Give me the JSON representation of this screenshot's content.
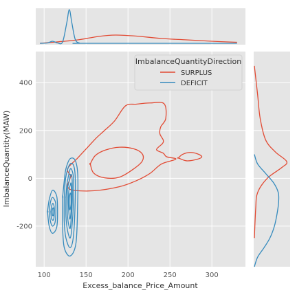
{
  "chart_data": {
    "type": "joint-kde",
    "xlabel": "Excess_balance_Price_Amount",
    "ylabel": "ImbalanceQuantity(MAW)",
    "xlim": [
      90,
      340
    ],
    "ylim": [
      -370,
      530
    ],
    "xticks": [
      100,
      150,
      200,
      250,
      300
    ],
    "yticks": [
      -200,
      0,
      200,
      400
    ],
    "grid": true,
    "legend": {
      "title": "ImbalanceQuantityDirection",
      "placement": "top-right"
    },
    "series": [
      {
        "name": "SURPLUS",
        "color": "#e24a33",
        "joint_contours": [
          [
            [
              132,
              10
            ],
            [
              128,
              40
            ],
            [
              140,
              85
            ],
            [
              152,
              130
            ],
            [
              162,
              168
            ],
            [
              172,
              200
            ],
            [
              184,
              240
            ],
            [
              197,
              303
            ],
            [
              210,
              310
            ],
            [
              226,
              315
            ],
            [
              243,
              312
            ],
            [
              245,
              250
            ],
            [
              239,
              215
            ],
            [
              238,
              186
            ],
            [
              242,
              160
            ],
            [
              241,
              145
            ],
            [
              234,
              120
            ],
            [
              242,
              105
            ],
            [
              246,
              90
            ],
            [
              257,
              80
            ],
            [
              240,
              60
            ],
            [
              226,
              20
            ],
            [
              210,
              -10
            ],
            [
              190,
              -35
            ],
            [
              160,
              -52
            ],
            [
              135,
              -50
            ],
            [
              128,
              -35
            ],
            [
              130,
              -10
            ],
            [
              132,
              10
            ]
          ],
          [
            [
              155,
              60
            ],
            [
              161,
              95
            ],
            [
              173,
              118
            ],
            [
              190,
              130
            ],
            [
              207,
              123
            ],
            [
              217,
              102
            ],
            [
              217,
              72
            ],
            [
              207,
              40
            ],
            [
              190,
              5
            ],
            [
              172,
              2
            ],
            [
              159,
              22
            ],
            [
              155,
              60
            ]
          ],
          [
            [
              260,
              85
            ],
            [
              265,
              100
            ],
            [
              274,
              108
            ],
            [
              283,
              102
            ],
            [
              288,
              90
            ],
            [
              283,
              80
            ],
            [
              270,
              73
            ],
            [
              260,
              85
            ]
          ]
        ],
        "x_density": [
          [
            95,
            0
          ],
          [
            115,
            0.004
          ],
          [
            140,
            0.01
          ],
          [
            165,
            0.02
          ],
          [
            185,
            0.024
          ],
          [
            210,
            0.021
          ],
          [
            240,
            0.014
          ],
          [
            270,
            0.01
          ],
          [
            300,
            0.006
          ],
          [
            330,
            0.003
          ]
        ],
        "y_density": [
          [
            -250,
            0
          ],
          [
            -130,
            0.004
          ],
          [
            -60,
            0.01
          ],
          [
            0,
            0.04
          ],
          [
            45,
            0.085
          ],
          [
            70,
            0.1
          ],
          [
            110,
            0.065
          ],
          [
            160,
            0.035
          ],
          [
            250,
            0.018
          ],
          [
            350,
            0.01
          ],
          [
            470,
            0
          ]
        ]
      },
      {
        "name": "DEFICIT",
        "color": "#348abd",
        "joint_contours": [
          [
            [
              122,
              -80
            ],
            [
              124,
              -10
            ],
            [
              126,
              40
            ],
            [
              131,
              82
            ],
            [
              137,
              75
            ],
            [
              140,
              20
            ],
            [
              140,
              -100
            ],
            [
              138,
              -270
            ],
            [
              131,
              -325
            ],
            [
              124,
              -290
            ],
            [
              122,
              -200
            ],
            [
              122,
              -80
            ]
          ],
          [
            [
              124,
              -80
            ],
            [
              125,
              -20
            ],
            [
              127,
              25
            ],
            [
              131,
              60
            ],
            [
              135,
              55
            ],
            [
              137,
              10
            ],
            [
              137,
              -100
            ],
            [
              135,
              -240
            ],
            [
              131,
              -290
            ],
            [
              126,
              -250
            ],
            [
              124,
              -180
            ],
            [
              124,
              -80
            ]
          ],
          [
            [
              126,
              -80
            ],
            [
              127,
              -30
            ],
            [
              129,
              10
            ],
            [
              131,
              38
            ],
            [
              133,
              35
            ],
            [
              135,
              0
            ],
            [
              135,
              -100
            ],
            [
              133,
              -210
            ],
            [
              131,
              -250
            ],
            [
              128,
              -220
            ],
            [
              126,
              -160
            ],
            [
              126,
              -80
            ]
          ],
          [
            [
              127.5,
              -80
            ],
            [
              128,
              -40
            ],
            [
              130,
              -10
            ],
            [
              131.5,
              15
            ],
            [
              133,
              10
            ],
            [
              133.5,
              -20
            ],
            [
              133.5,
              -100
            ],
            [
              132,
              -180
            ],
            [
              131,
              -210
            ],
            [
              129,
              -190
            ],
            [
              127.5,
              -140
            ],
            [
              127.5,
              -80
            ]
          ],
          [
            [
              129,
              -80
            ],
            [
              129.5,
              -50
            ],
            [
              131,
              -30
            ],
            [
              132,
              -20
            ],
            [
              132.5,
              -50
            ],
            [
              132.5,
              -110
            ],
            [
              131.5,
              -160
            ],
            [
              130.5,
              -170
            ],
            [
              129.5,
              -145
            ],
            [
              129,
              -110
            ],
            [
              129,
              -80
            ]
          ],
          [
            [
              130,
              -90
            ],
            [
              130.5,
              -70
            ],
            [
              131.5,
              -62
            ],
            [
              132,
              -80
            ],
            [
              132,
              -110
            ],
            [
              131,
              -130
            ],
            [
              130.5,
              -130
            ],
            [
              130,
              -110
            ],
            [
              130,
              -90
            ]
          ],
          [
            [
              104,
              -140
            ],
            [
              106,
              -90
            ],
            [
              110,
              -50
            ],
            [
              115,
              -75
            ],
            [
              116,
              -140
            ],
            [
              115,
              -205
            ],
            [
              110,
              -230
            ],
            [
              106,
              -200
            ],
            [
              104,
              -140
            ]
          ],
          [
            [
              106,
              -140
            ],
            [
              107.5,
              -100
            ],
            [
              110,
              -80
            ],
            [
              113.5,
              -100
            ],
            [
              114,
              -140
            ],
            [
              113,
              -185
            ],
            [
              110,
              -200
            ],
            [
              107.5,
              -180
            ],
            [
              106,
              -140
            ]
          ],
          [
            [
              108,
              -140
            ],
            [
              109,
              -115
            ],
            [
              110.5,
              -105
            ],
            [
              112,
              -120
            ],
            [
              112.2,
              -140
            ],
            [
              111.5,
              -170
            ],
            [
              110,
              -175
            ],
            [
              108.6,
              -165
            ],
            [
              108,
              -140
            ]
          ],
          [
            [
              109.5,
              -140
            ],
            [
              110,
              -128
            ],
            [
              111,
              -124
            ],
            [
              111.5,
              -140
            ],
            [
              111,
              -155
            ],
            [
              110,
              -155
            ],
            [
              109.5,
              -140
            ]
          ]
        ],
        "x_density": [
          [
            95,
            0
          ],
          [
            104,
            0.001
          ],
          [
            110,
            0.006
          ],
          [
            116,
            0.001
          ],
          [
            122,
            0.004
          ],
          [
            127,
            0.06
          ],
          [
            130,
            0.098
          ],
          [
            133,
            0.06
          ],
          [
            137,
            0.012
          ],
          [
            142,
            0.001
          ],
          [
            150,
            0
          ],
          [
            330,
            0
          ]
        ],
        "y_density": [
          [
            -370,
            0
          ],
          [
            -330,
            0.01
          ],
          [
            -290,
            0.03
          ],
          [
            -250,
            0.048
          ],
          [
            -200,
            0.062
          ],
          [
            -150,
            0.07
          ],
          [
            -100,
            0.075
          ],
          [
            -60,
            0.074
          ],
          [
            -20,
            0.06
          ],
          [
            20,
            0.035
          ],
          [
            60,
            0.01
          ],
          [
            100,
            0
          ]
        ]
      }
    ]
  }
}
